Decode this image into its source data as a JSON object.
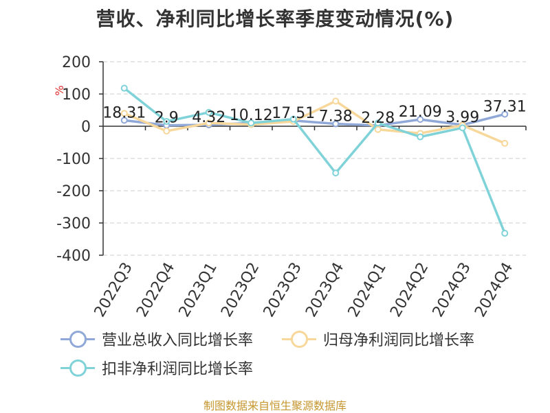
{
  "title": "营收、净利同比增长率季度变动情况(%)",
  "source": "制图数据来自恒生聚源数据库",
  "chart_data": {
    "type": "line",
    "categories": [
      "2022Q3",
      "2022Q4",
      "2023Q1",
      "2023Q2",
      "2023Q3",
      "2023Q4",
      "2024Q1",
      "2024Q2",
      "2024Q3",
      "2024Q4"
    ],
    "ylabel": "%",
    "ylim": [
      -400,
      200
    ],
    "yticks": [
      200,
      100,
      0,
      -100,
      -200,
      -300,
      -400
    ],
    "grid": true,
    "legend_position": "bottom",
    "series": [
      {
        "name": "营业总收入同比增长率",
        "color": "#8fa8d8",
        "values": [
          18.31,
          2.9,
          4.32,
          10.12,
          17.51,
          7.38,
          2.28,
          21.09,
          3.99,
          37.31
        ],
        "labels": [
          "18.31",
          "2.9",
          "4.32",
          "10.12",
          "17.51",
          "7.38",
          "2.28",
          "21.09",
          "3.99",
          "37.31"
        ]
      },
      {
        "name": "归母净利润同比增长率",
        "color": "#f7d79a",
        "values": [
          40,
          -15,
          10,
          5,
          15,
          78,
          -10,
          -22,
          3,
          -53
        ]
      },
      {
        "name": "扣非净利润同比增长率",
        "color": "#7fd3d8",
        "values": [
          118,
          15,
          43,
          10,
          22,
          -145,
          10,
          -33,
          -5,
          -332
        ]
      }
    ]
  }
}
